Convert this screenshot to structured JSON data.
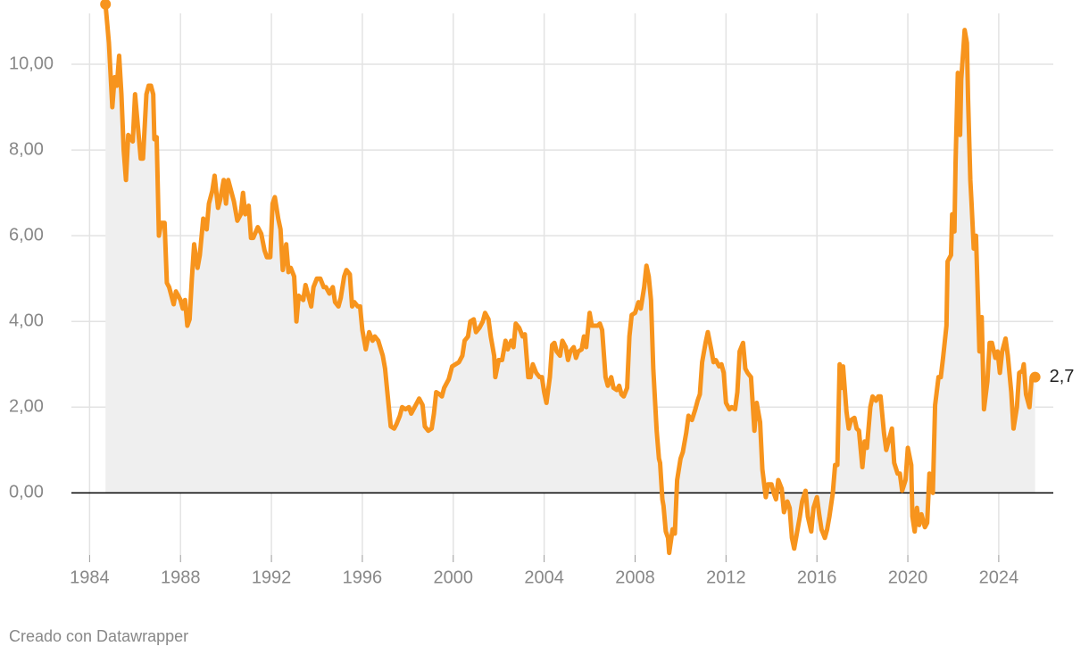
{
  "chart_data": {
    "type": "line",
    "footer": "Creado con Datawrapper",
    "color": "#f7941d",
    "area_color": "#efefef",
    "grid": true,
    "xlim": [
      1983.2,
      2026.4
    ],
    "ylim": [
      -1.45,
      11.5
    ],
    "xticks": [
      1984,
      1988,
      1992,
      1996,
      2000,
      2004,
      2008,
      2012,
      2016,
      2020,
      2024
    ],
    "yticks": [
      {
        "value": 0,
        "label": "0,00"
      },
      {
        "value": 2,
        "label": "2,00"
      },
      {
        "value": 4,
        "label": "4,00"
      },
      {
        "value": 6,
        "label": "6,00"
      },
      {
        "value": 8,
        "label": "8,00"
      },
      {
        "value": 10,
        "label": "10,00"
      }
    ],
    "last_value_label": "2,7",
    "x": [
      1984.7,
      1984.85,
      1985.0,
      1985.1,
      1985.2,
      1985.3,
      1985.4,
      1985.5,
      1985.6,
      1985.7,
      1985.9,
      1986.0,
      1986.1,
      1986.25,
      1986.35,
      1986.5,
      1986.6,
      1986.7,
      1986.8,
      1986.85,
      1986.95,
      1987.05,
      1987.15,
      1987.3,
      1987.4,
      1987.5,
      1987.7,
      1987.8,
      1988.0,
      1988.1,
      1988.2,
      1988.3,
      1988.4,
      1988.5,
      1988.6,
      1988.75,
      1988.85,
      1989.0,
      1989.15,
      1989.25,
      1989.4,
      1989.5,
      1989.65,
      1989.75,
      1989.9,
      1990.0,
      1990.1,
      1990.25,
      1990.35,
      1990.5,
      1990.65,
      1990.75,
      1990.85,
      1991.0,
      1991.1,
      1991.2,
      1991.4,
      1991.55,
      1991.7,
      1991.8,
      1991.95,
      1992.05,
      1992.15,
      1992.3,
      1992.4,
      1992.5,
      1992.65,
      1992.75,
      1992.85,
      1993.0,
      1993.1,
      1993.2,
      1993.4,
      1993.5,
      1993.6,
      1993.75,
      1993.85,
      1994.0,
      1994.15,
      1994.3,
      1994.4,
      1994.55,
      1994.7,
      1994.8,
      1994.95,
      1995.05,
      1995.2,
      1995.3,
      1995.45,
      1995.55,
      1995.65,
      1995.8,
      1995.9,
      1996.0,
      1996.15,
      1996.3,
      1996.45,
      1996.55,
      1996.7,
      1996.9,
      1997.0,
      1997.1,
      1997.25,
      1997.4,
      1997.5,
      1997.65,
      1997.75,
      1997.9,
      1998.05,
      1998.15,
      1998.3,
      1998.4,
      1998.5,
      1998.65,
      1998.75,
      1998.9,
      1999.05,
      1999.15,
      1999.25,
      1999.4,
      1999.5,
      1999.6,
      1999.8,
      1999.95,
      2000.1,
      2000.25,
      2000.4,
      2000.5,
      2000.65,
      2000.75,
      2000.9,
      2001.0,
      2001.15,
      2001.3,
      2001.4,
      2001.55,
      2001.65,
      2001.8,
      2001.85,
      2002.0,
      2002.15,
      2002.3,
      2002.4,
      2002.55,
      2002.65,
      2002.75,
      2002.9,
      2003.05,
      2003.15,
      2003.3,
      2003.4,
      2003.5,
      2003.65,
      2003.8,
      2003.9,
      2004.0,
      2004.1,
      2004.25,
      2004.35,
      2004.45,
      2004.55,
      2004.7,
      2004.8,
      2004.95,
      2005.05,
      2005.15,
      2005.3,
      2005.4,
      2005.5,
      2005.65,
      2005.75,
      2005.85,
      2006.0,
      2006.1,
      2006.2,
      2006.35,
      2006.45,
      2006.55,
      2006.7,
      2006.8,
      2006.95,
      2007.05,
      2007.2,
      2007.3,
      2007.4,
      2007.5,
      2007.65,
      2007.75,
      2007.85,
      2008.0,
      2008.15,
      2008.25,
      2008.4,
      2008.5,
      2008.6,
      2008.7,
      2008.8,
      2008.95,
      2009.05,
      2009.1,
      2009.2,
      2009.25,
      2009.35,
      2009.45,
      2009.5,
      2009.65,
      2009.75,
      2009.85,
      2010.0,
      2010.1,
      2010.25,
      2010.35,
      2010.5,
      2010.65,
      2010.75,
      2010.85,
      2010.95,
      2011.1,
      2011.2,
      2011.35,
      2011.45,
      2011.55,
      2011.7,
      2011.8,
      2011.9,
      2012.0,
      2012.15,
      2012.25,
      2012.4,
      2012.5,
      2012.6,
      2012.75,
      2012.85,
      2012.95,
      2013.1,
      2013.25,
      2013.35,
      2013.5,
      2013.6,
      2013.75,
      2013.85,
      2014.0,
      2014.1,
      2014.2,
      2014.3,
      2014.45,
      2014.55,
      2014.7,
      2014.8,
      2014.9,
      2015.0,
      2015.15,
      2015.25,
      2015.35,
      2015.5,
      2015.6,
      2015.75,
      2015.85,
      2016.0,
      2016.1,
      2016.2,
      2016.35,
      2016.45,
      2016.55,
      2016.7,
      2016.8,
      2016.9,
      2017.0,
      2017.1,
      2017.15,
      2017.3,
      2017.4,
      2017.5,
      2017.65,
      2017.75,
      2017.85,
      2018.0,
      2018.1,
      2018.2,
      2018.35,
      2018.45,
      2018.6,
      2018.7,
      2018.8,
      2018.95,
      2019.05,
      2019.2,
      2019.3,
      2019.4,
      2019.55,
      2019.65,
      2019.75,
      2019.9,
      2020.0,
      2020.15,
      2020.2,
      2020.3,
      2020.4,
      2020.5,
      2020.6,
      2020.75,
      2020.85,
      2020.95,
      2021.1,
      2021.2,
      2021.35,
      2021.45,
      2021.55,
      2021.7,
      2021.75,
      2021.9,
      2021.95,
      2022.05,
      2022.1,
      2022.2,
      2022.3,
      2022.35,
      2022.45,
      2022.5,
      2022.6,
      2022.65,
      2022.75,
      2022.8,
      2022.9,
      2023.0,
      2023.15,
      2023.25,
      2023.35,
      2023.5,
      2023.6,
      2023.7,
      2023.85,
      2023.95,
      2024.05,
      2024.15,
      2024.3,
      2024.4,
      2024.55,
      2024.65,
      2024.8,
      2024.9,
      2025.05,
      2025.1,
      2025.2,
      2025.35,
      2025.45,
      2025.6
    ],
    "values": [
      11.4,
      10.5,
      9.0,
      9.7,
      9.5,
      10.2,
      9.3,
      8.0,
      7.3,
      8.35,
      8.2,
      9.3,
      8.7,
      7.8,
      7.8,
      9.3,
      9.5,
      9.5,
      9.3,
      8.25,
      8.3,
      6.0,
      6.3,
      6.3,
      4.9,
      4.8,
      4.4,
      4.7,
      4.5,
      4.3,
      4.5,
      3.9,
      4.05,
      5.0,
      5.8,
      5.25,
      5.55,
      6.4,
      6.15,
      6.75,
      7.05,
      7.4,
      6.65,
      6.85,
      7.3,
      6.75,
      7.3,
      7.0,
      6.8,
      6.35,
      6.5,
      7.0,
      6.5,
      6.7,
      5.95,
      5.95,
      6.2,
      6.05,
      5.65,
      5.5,
      5.5,
      6.75,
      6.9,
      6.4,
      6.15,
      5.2,
      5.8,
      5.15,
      5.25,
      5.05,
      4.0,
      4.6,
      4.5,
      4.85,
      4.65,
      4.35,
      4.8,
      5.0,
      5.0,
      4.8,
      4.8,
      4.65,
      4.8,
      4.45,
      4.35,
      4.55,
      5.05,
      5.2,
      5.1,
      4.35,
      4.45,
      4.35,
      4.35,
      3.8,
      3.35,
      3.75,
      3.55,
      3.65,
      3.55,
      3.2,
      2.9,
      2.35,
      1.55,
      1.5,
      1.6,
      1.8,
      2.0,
      1.95,
      2.0,
      1.85,
      2.0,
      2.1,
      2.2,
      2.05,
      1.55,
      1.45,
      1.5,
      1.85,
      2.35,
      2.3,
      2.25,
      2.45,
      2.65,
      2.95,
      3.0,
      3.05,
      3.2,
      3.55,
      3.65,
      4.0,
      4.05,
      3.75,
      3.85,
      4.0,
      4.2,
      4.05,
      3.65,
      3.2,
      2.7,
      3.1,
      3.1,
      3.55,
      3.35,
      3.55,
      3.4,
      3.95,
      3.85,
      3.65,
      3.7,
      2.7,
      2.7,
      3.0,
      2.8,
      2.7,
      2.7,
      2.35,
      2.1,
      2.7,
      3.45,
      3.5,
      3.3,
      3.2,
      3.55,
      3.4,
      3.1,
      3.3,
      3.4,
      3.15,
      3.3,
      3.35,
      3.65,
      3.4,
      4.2,
      3.9,
      3.9,
      3.9,
      3.95,
      3.8,
      2.7,
      2.5,
      2.7,
      2.45,
      2.4,
      2.5,
      2.3,
      2.25,
      2.45,
      3.65,
      4.15,
      4.2,
      4.45,
      4.3,
      4.8,
      5.3,
      5.05,
      4.5,
      2.9,
      1.45,
      0.8,
      0.7,
      -0.15,
      -0.3,
      -0.9,
      -1.05,
      -1.4,
      -0.85,
      -0.95,
      0.3,
      0.8,
      0.95,
      1.4,
      1.8,
      1.7,
      1.95,
      2.15,
      2.3,
      3.05,
      3.5,
      3.75,
      3.35,
      3.05,
      3.1,
      2.95,
      3.0,
      2.8,
      2.1,
      1.95,
      2.0,
      1.95,
      2.35,
      3.3,
      3.5,
      2.9,
      2.8,
      2.7,
      1.45,
      2.1,
      1.65,
      0.55,
      -0.1,
      0.2,
      0.2,
      0.0,
      -0.15,
      0.3,
      0.1,
      -0.45,
      -0.2,
      -0.35,
      -1.05,
      -1.3,
      -0.85,
      -0.55,
      -0.2,
      0.05,
      -0.55,
      -0.9,
      -0.35,
      -0.1,
      -0.5,
      -0.85,
      -1.05,
      -0.85,
      -0.55,
      0.0,
      0.65,
      0.65,
      3.0,
      2.45,
      2.95,
      1.9,
      1.5,
      1.7,
      1.75,
      1.5,
      1.45,
      0.6,
      1.2,
      1.05,
      2.0,
      2.25,
      2.15,
      2.25,
      2.25,
      1.4,
      1.0,
      1.3,
      1.5,
      0.7,
      0.45,
      0.45,
      0.05,
      0.3,
      1.05,
      0.65,
      -0.55,
      -0.9,
      -0.35,
      -0.75,
      -0.5,
      -0.8,
      -0.7,
      0.45,
      0.0,
      2.05,
      2.7,
      2.7,
      3.15,
      3.9,
      5.4,
      5.55,
      6.5,
      6.1,
      7.7,
      9.8,
      8.35,
      9.65,
      10.4,
      10.8,
      10.5,
      9.2,
      7.3,
      6.8,
      5.7,
      6.0,
      3.3,
      4.1,
      1.95,
      2.6,
      3.5,
      3.5,
      3.15,
      3.3,
      2.8,
      3.3,
      3.6,
      3.2,
      2.35,
      1.5,
      2.0,
      2.8,
      2.85,
      3.0,
      2.3,
      2.0,
      2.7,
      2.7
    ]
  }
}
